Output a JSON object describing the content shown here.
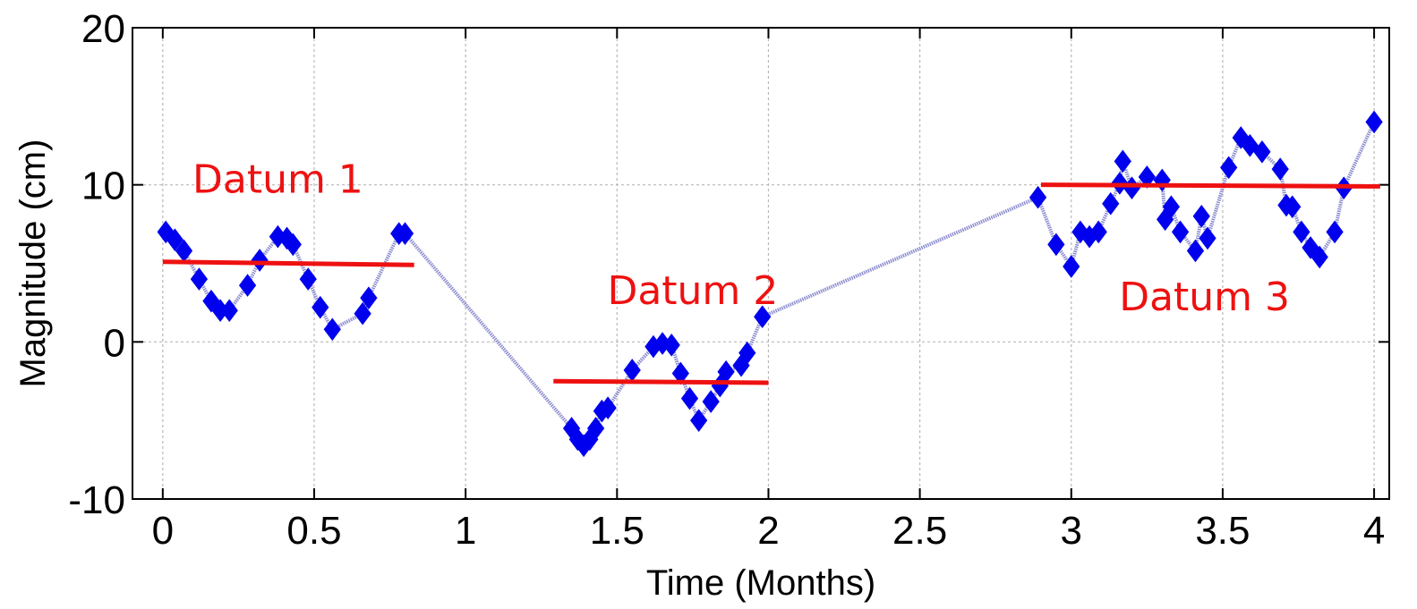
{
  "chart_data": {
    "type": "line",
    "xlabel": "Time (Months)",
    "ylabel": "Magnitude (cm)",
    "xlim": [
      -0.1,
      4.05
    ],
    "ylim": [
      -10,
      20
    ],
    "xticks": [
      0,
      0.5,
      1,
      1.5,
      2,
      2.5,
      3,
      3.5,
      4
    ],
    "xtick_labels": [
      "0",
      "0.5",
      "1",
      "1.5",
      "2",
      "2.5",
      "3",
      "3.5",
      "4"
    ],
    "yticks": [
      -10,
      0,
      10,
      20
    ],
    "ytick_labels": [
      "-10",
      "0",
      "10",
      "20"
    ],
    "grid": true,
    "series": [
      {
        "color": "#0000ee",
        "line_color": "#8c8cd0",
        "marker": "diamond",
        "points": [
          [
            0.01,
            7.0
          ],
          [
            0.04,
            6.5
          ],
          [
            0.07,
            5.8
          ],
          [
            0.12,
            4.0
          ],
          [
            0.16,
            2.6
          ],
          [
            0.19,
            2.0
          ],
          [
            0.22,
            2.0
          ],
          [
            0.28,
            3.6
          ],
          [
            0.32,
            5.2
          ],
          [
            0.38,
            6.7
          ],
          [
            0.41,
            6.6
          ],
          [
            0.43,
            6.2
          ],
          [
            0.48,
            4.0
          ],
          [
            0.52,
            2.2
          ],
          [
            0.56,
            0.8
          ],
          [
            0.66,
            1.8
          ],
          [
            0.68,
            2.8
          ],
          [
            0.78,
            6.9
          ],
          [
            0.8,
            6.9
          ],
          [
            1.35,
            -5.5
          ],
          [
            1.37,
            -6.2
          ],
          [
            1.39,
            -6.6
          ],
          [
            1.41,
            -6.2
          ],
          [
            1.43,
            -5.5
          ],
          [
            1.45,
            -4.4
          ],
          [
            1.47,
            -4.2
          ],
          [
            1.55,
            -1.8
          ],
          [
            1.62,
            -0.3
          ],
          [
            1.65,
            -0.1
          ],
          [
            1.68,
            -0.2
          ],
          [
            1.71,
            -2.0
          ],
          [
            1.74,
            -3.6
          ],
          [
            1.77,
            -5.0
          ],
          [
            1.81,
            -3.8
          ],
          [
            1.84,
            -2.8
          ],
          [
            1.86,
            -1.9
          ],
          [
            1.91,
            -1.5
          ],
          [
            1.93,
            -0.7
          ],
          [
            1.98,
            1.6
          ],
          [
            2.89,
            9.2
          ],
          [
            2.95,
            6.2
          ],
          [
            3.0,
            4.8
          ],
          [
            3.03,
            7.0
          ],
          [
            3.06,
            6.7
          ],
          [
            3.09,
            7.0
          ],
          [
            3.13,
            8.8
          ],
          [
            3.16,
            10.1
          ],
          [
            3.17,
            11.5
          ],
          [
            3.2,
            9.8
          ],
          [
            3.25,
            10.5
          ],
          [
            3.3,
            10.3
          ],
          [
            3.31,
            7.8
          ],
          [
            3.33,
            8.6
          ],
          [
            3.36,
            7.0
          ],
          [
            3.41,
            5.8
          ],
          [
            3.43,
            8.0
          ],
          [
            3.45,
            6.6
          ],
          [
            3.52,
            11.1
          ],
          [
            3.56,
            13.0
          ],
          [
            3.59,
            12.5
          ],
          [
            3.63,
            12.1
          ],
          [
            3.69,
            11.0
          ],
          [
            3.71,
            8.7
          ],
          [
            3.73,
            8.6
          ],
          [
            3.76,
            7.0
          ],
          [
            3.79,
            6.0
          ],
          [
            3.82,
            5.4
          ],
          [
            3.87,
            7.0
          ],
          [
            3.9,
            9.8
          ],
          [
            4.0,
            14.0
          ]
        ]
      }
    ],
    "reference_lines": [
      {
        "label": "Datum 1",
        "x": [
          0.0,
          0.83
        ],
        "y": [
          5.1,
          4.9
        ],
        "color": "#ee1111"
      },
      {
        "label": "Datum 2",
        "x": [
          1.29,
          2.0
        ],
        "y": [
          -2.5,
          -2.6
        ],
        "color": "#ee1111"
      },
      {
        "label": "Datum 3",
        "x": [
          2.9,
          4.02
        ],
        "y": [
          10.0,
          9.9
        ],
        "color": "#ee1111"
      }
    ],
    "annotations": [
      {
        "text": "Datum 1",
        "x": 0.38,
        "y": 9.5,
        "color": "#ee1111"
      },
      {
        "text": "Datum 2",
        "x": 1.75,
        "y": 2.4,
        "color": "#ee1111"
      },
      {
        "text": "Datum 3",
        "x": 3.44,
        "y": 2.0,
        "color": "#ee1111"
      }
    ]
  }
}
